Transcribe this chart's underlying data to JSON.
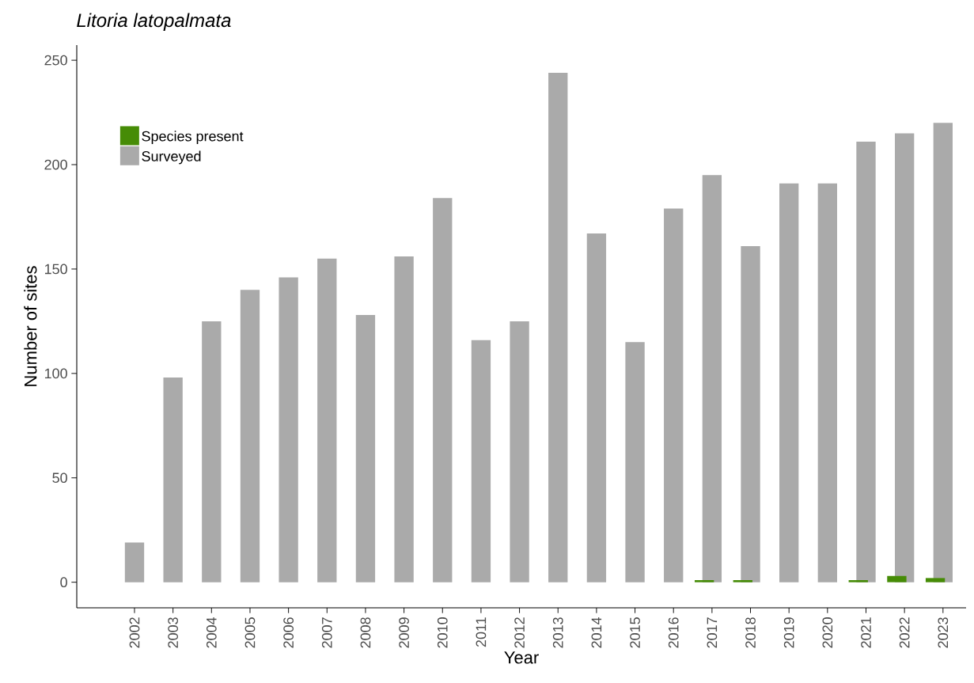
{
  "chart_data": {
    "type": "bar",
    "title": "Litoria latopalmata",
    "xlabel": "Year",
    "ylabel": "Number of sites",
    "categories": [
      "2002",
      "2003",
      "2004",
      "2005",
      "2006",
      "2007",
      "2008",
      "2009",
      "2010",
      "2011",
      "2012",
      "2013",
      "2014",
      "2015",
      "2016",
      "2017",
      "2018",
      "2019",
      "2020",
      "2021",
      "2022",
      "2023"
    ],
    "series": [
      {
        "name": "Species present",
        "color": "#468c06",
        "values": [
          0,
          0,
          0,
          0,
          0,
          0,
          0,
          0,
          0,
          0,
          0,
          0,
          0,
          0,
          0,
          1,
          1,
          0,
          0,
          1,
          3,
          2
        ]
      },
      {
        "name": "Surveyed",
        "color": "#aaaaaa",
        "values": [
          19,
          98,
          125,
          140,
          146,
          155,
          128,
          156,
          184,
          116,
          125,
          244,
          167,
          115,
          179,
          195,
          161,
          191,
          191,
          211,
          215,
          220
        ]
      }
    ],
    "ylim": [
      -12.25,
      257.25
    ],
    "yticks": [
      0,
      50,
      100,
      150,
      200,
      250
    ],
    "grid": false,
    "legend": "top left"
  }
}
